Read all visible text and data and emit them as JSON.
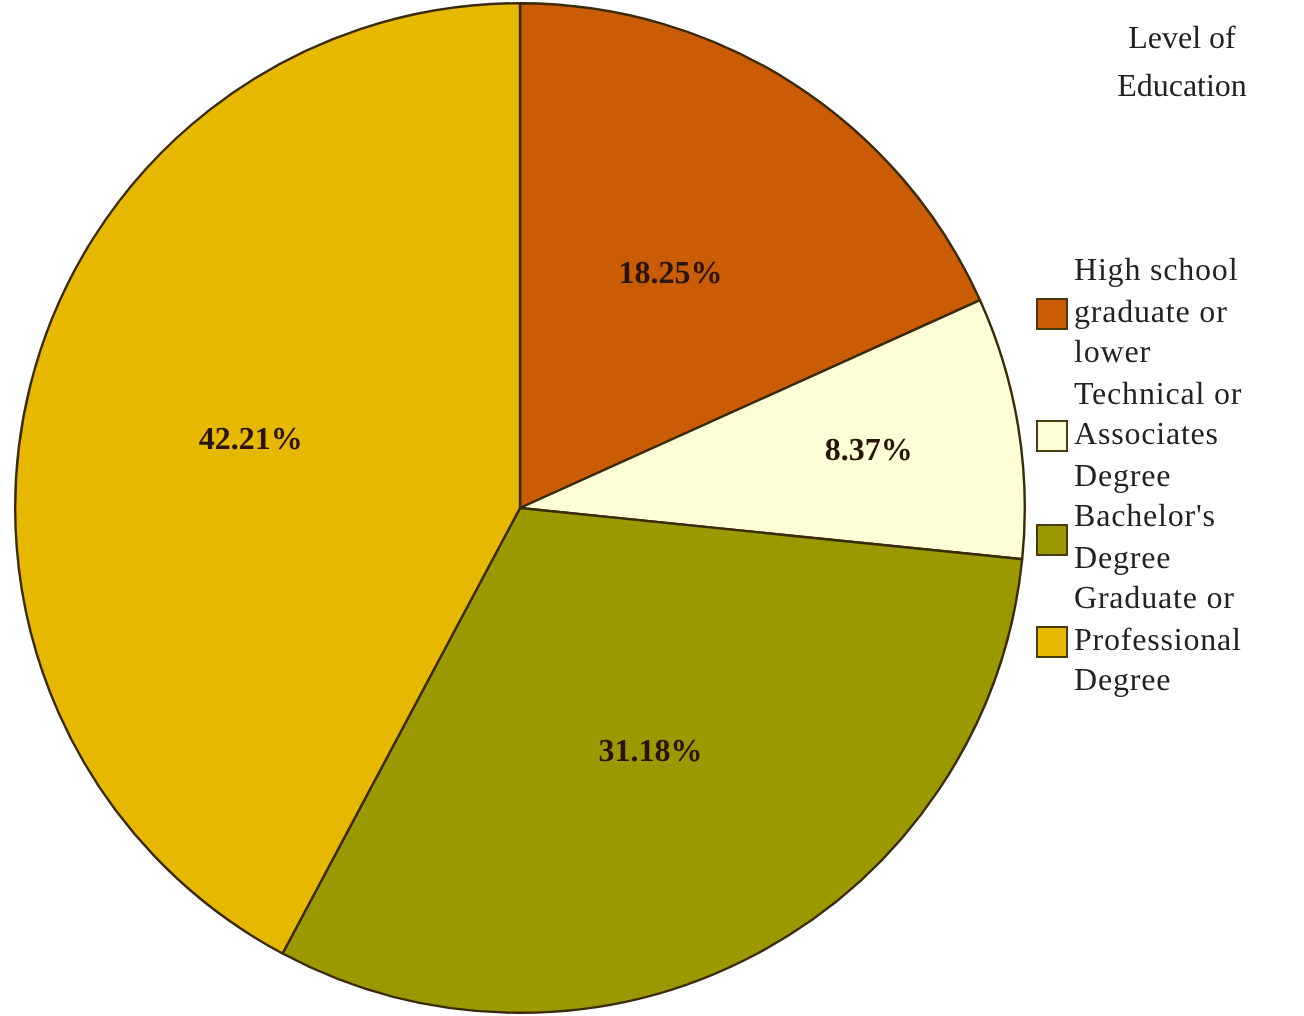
{
  "chart_data": {
    "type": "pie",
    "legend_title": "Level of Education",
    "legend": "right",
    "categories": [
      "High school graduate or lower",
      "Technical or Associates Degree",
      "Bachelor's Degree",
      "Graduate or Professional Degree"
    ],
    "values": [
      18.25,
      8.37,
      31.18,
      42.21
    ],
    "colors": [
      "#c95c05",
      "#fdfdd6",
      "#9b9900",
      "#e6b800"
    ],
    "value_labels": [
      "18.25%",
      "8.37%",
      "31.18%",
      "42.21%"
    ]
  }
}
